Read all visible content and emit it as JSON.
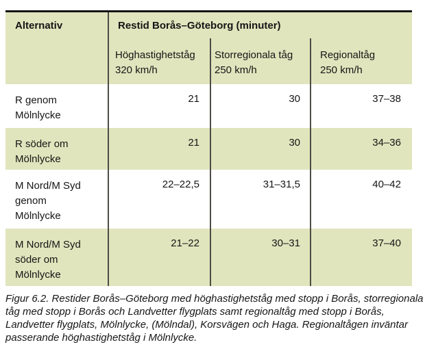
{
  "table": {
    "header": {
      "col0": "Alternativ",
      "title": "Restid Borås–Göteborg (minuter)",
      "subcols": [
        {
          "line1": "Höghastighetståg",
          "line2": "320 km/h"
        },
        {
          "line1": "Storregionala tåg",
          "line2": "250 km/h"
        },
        {
          "line1": "Regionaltåg",
          "line2": "250 km/h"
        }
      ]
    },
    "rows": [
      {
        "label_lines": [
          "R genom",
          "Mölnlycke"
        ],
        "values": [
          "21",
          "30",
          "37–38"
        ]
      },
      {
        "label_lines": [
          "R söder om",
          "Mölnlycke"
        ],
        "values": [
          "21",
          "30",
          "34–36"
        ]
      },
      {
        "label_lines": [
          "M Nord/M Syd",
          "genom",
          "Mölnlycke"
        ],
        "values": [
          "22–22,5",
          "31–31,5",
          "40–42"
        ]
      },
      {
        "label_lines": [
          "M Nord/M Syd",
          "söder om",
          "Mölnlycke"
        ],
        "values": [
          "21–22",
          "30–31",
          "37–40"
        ]
      }
    ]
  },
  "caption": {
    "lines": [
      "Figur 6.2.  Restider Borås–Göteborg med höghastighetståg med stopp i Borås, storregionala",
      "tåg med stopp i Borås och Landvetter flygplats samt regionaltåg med stopp i Borås,",
      "Landvetter flygplats, Mölnlycke, (Mölndal), Korsvägen och Haga. Regionaltågen inväntar",
      "passerande höghastighetståg i Mölnlycke."
    ]
  },
  "colors": {
    "band": "#e1e5bd",
    "divider": "#4c4b46",
    "top_border": "#141414",
    "text": "#151515"
  }
}
